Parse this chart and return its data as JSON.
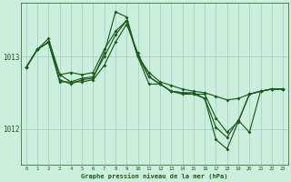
{
  "title": "Graphe pression niveau de la mer (hPa)",
  "bg_color": "#cceedd",
  "grid_color": "#99cccc",
  "line_color": "#1a5c1a",
  "xlim_min": -0.5,
  "xlim_max": 23.5,
  "ylim_min": 1011.5,
  "ylim_max": 1013.75,
  "yticks": [
    1012,
    1013
  ],
  "xticks": [
    0,
    1,
    2,
    3,
    4,
    5,
    6,
    7,
    8,
    9,
    10,
    11,
    12,
    13,
    14,
    15,
    16,
    17,
    18,
    19,
    20,
    21,
    22,
    23
  ],
  "series": [
    [
      1012.85,
      1013.1,
      1013.2,
      1012.75,
      1012.78,
      1012.75,
      1012.78,
      1013.1,
      1013.35,
      1013.5,
      1013.0,
      1012.78,
      1012.65,
      1012.6,
      1012.55,
      1012.52,
      1012.5,
      1012.45,
      1012.4,
      1012.42,
      1012.48,
      1012.52,
      1012.55,
      1012.55
    ],
    [
      1012.85,
      1013.1,
      1013.2,
      1012.65,
      1012.65,
      1012.65,
      1012.68,
      1012.88,
      1013.2,
      1013.45,
      1013.05,
      1012.72,
      1012.62,
      1012.52,
      1012.48,
      1012.48,
      1012.48,
      1012.15,
      1011.95,
      1012.1,
      1012.48,
      1012.52,
      1012.55,
      1012.55
    ],
    [
      1012.85,
      1013.1,
      1013.25,
      1012.75,
      1012.65,
      1012.7,
      1012.72,
      1013.0,
      1013.3,
      1013.5,
      1013.0,
      1012.72,
      1012.62,
      1012.52,
      1012.5,
      1012.48,
      1012.42,
      1011.85,
      1011.72,
      1012.1,
      1012.48,
      1012.52,
      1012.55,
      1012.55
    ],
    [
      1012.85,
      1013.1,
      1013.2,
      1012.68,
      1012.62,
      1012.68,
      1012.7,
      1013.05,
      1013.62,
      1013.55,
      1013.0,
      1012.62,
      1012.62,
      1012.52,
      1012.5,
      1012.5,
      1012.42,
      1012.02,
      1011.88,
      1012.12,
      1011.95,
      1012.52,
      1012.55,
      1012.55
    ]
  ]
}
